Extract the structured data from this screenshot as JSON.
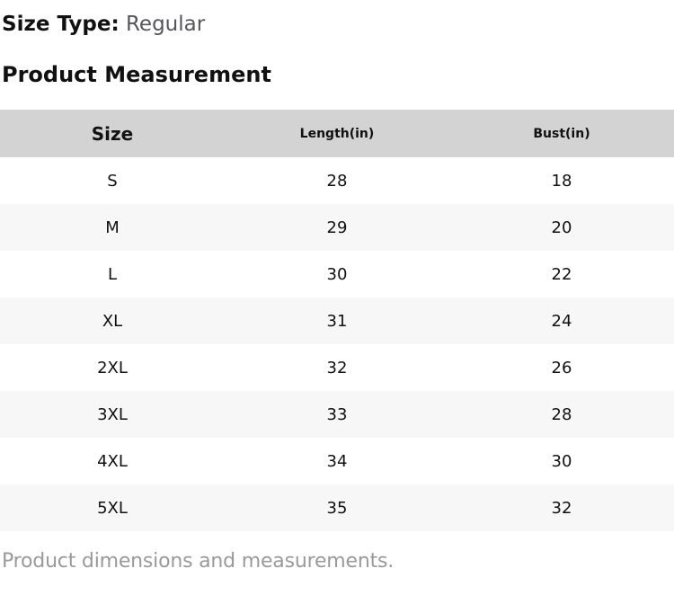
{
  "size_type": {
    "label": "Size Type:",
    "value": "Regular"
  },
  "section_title": "Product Measurement",
  "table": {
    "columns": [
      "Size",
      "Length(in)",
      "Bust(in)"
    ],
    "rows": [
      {
        "size": "S",
        "length": "28",
        "bust": "18"
      },
      {
        "size": "M",
        "length": "29",
        "bust": "20"
      },
      {
        "size": "L",
        "length": "30",
        "bust": "22"
      },
      {
        "size": "XL",
        "length": "31",
        "bust": "24"
      },
      {
        "size": "2XL",
        "length": "32",
        "bust": "26"
      },
      {
        "size": "3XL",
        "length": "33",
        "bust": "28"
      },
      {
        "size": "4XL",
        "length": "34",
        "bust": "30"
      },
      {
        "size": "5XL",
        "length": "35",
        "bust": "32"
      }
    ]
  },
  "footer_note": "Product dimensions and measurements.",
  "colors": {
    "header_bg": "#d3d3d3",
    "alt_row_bg": "#f7f7f7",
    "text": "#111111",
    "size_type_value_text": "#55565c",
    "footer_text": "#9a9a9a"
  }
}
